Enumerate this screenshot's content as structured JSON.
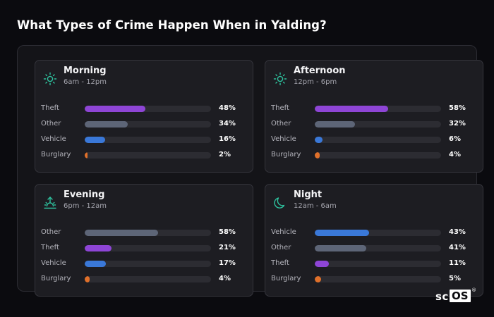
{
  "title": "What Types of Crime Happen When in Yalding?",
  "colors": {
    "theft": "#8e45d6",
    "other": "#5d6577",
    "vehicle": "#3a78d8",
    "burglary": "#e0702a",
    "icon": "#2ec4a0"
  },
  "cards": [
    {
      "key": "morning",
      "title": "Morning",
      "range": "6am - 12pm",
      "icon": "sun-icon",
      "rows": [
        {
          "label": "Theft",
          "value": 48,
          "display": "48%",
          "type": "theft"
        },
        {
          "label": "Other",
          "value": 34,
          "display": "34%",
          "type": "other"
        },
        {
          "label": "Vehicle",
          "value": 16,
          "display": "16%",
          "type": "vehicle"
        },
        {
          "label": "Burglary",
          "value": 2,
          "display": "2%",
          "type": "burglary"
        }
      ]
    },
    {
      "key": "afternoon",
      "title": "Afternoon",
      "range": "12pm - 6pm",
      "icon": "sun-icon",
      "rows": [
        {
          "label": "Theft",
          "value": 58,
          "display": "58%",
          "type": "theft"
        },
        {
          "label": "Other",
          "value": 32,
          "display": "32%",
          "type": "other"
        },
        {
          "label": "Vehicle",
          "value": 6,
          "display": "6%",
          "type": "vehicle"
        },
        {
          "label": "Burglary",
          "value": 4,
          "display": "4%",
          "type": "burglary"
        }
      ]
    },
    {
      "key": "evening",
      "title": "Evening",
      "range": "6pm - 12am",
      "icon": "sunset-icon",
      "rows": [
        {
          "label": "Other",
          "value": 58,
          "display": "58%",
          "type": "other"
        },
        {
          "label": "Theft",
          "value": 21,
          "display": "21%",
          "type": "theft"
        },
        {
          "label": "Vehicle",
          "value": 17,
          "display": "17%",
          "type": "vehicle"
        },
        {
          "label": "Burglary",
          "value": 4,
          "display": "4%",
          "type": "burglary"
        }
      ]
    },
    {
      "key": "night",
      "title": "Night",
      "range": "12am - 6am",
      "icon": "moon-icon",
      "rows": [
        {
          "label": "Vehicle",
          "value": 43,
          "display": "43%",
          "type": "vehicle"
        },
        {
          "label": "Other",
          "value": 41,
          "display": "41%",
          "type": "other"
        },
        {
          "label": "Theft",
          "value": 11,
          "display": "11%",
          "type": "theft"
        },
        {
          "label": "Burglary",
          "value": 5,
          "display": "5%",
          "type": "burglary"
        }
      ]
    }
  ],
  "logo": {
    "sc": "sc",
    "os": "OS",
    "reg": "®"
  }
}
